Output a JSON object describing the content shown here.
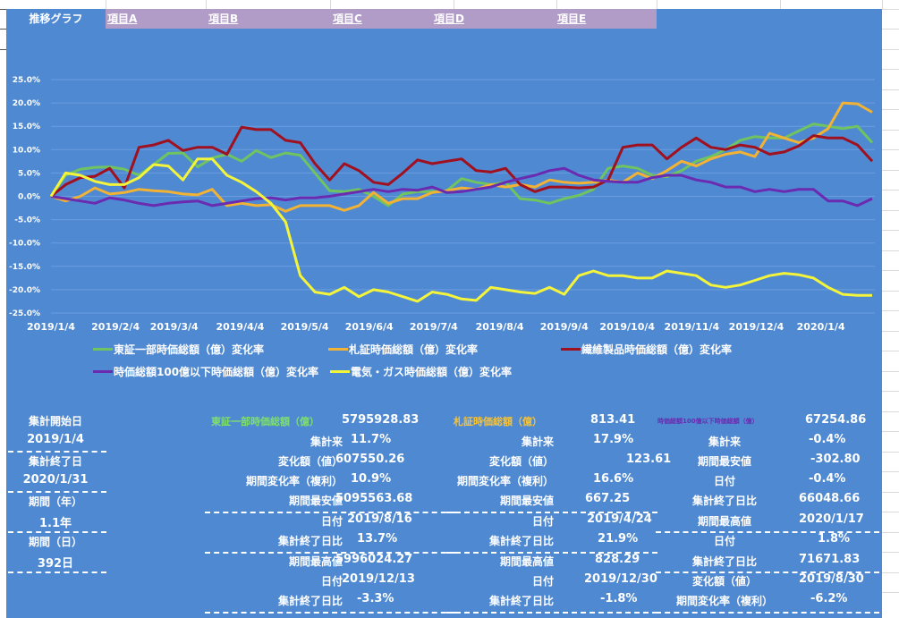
{
  "header": {
    "title": "推移グラフ",
    "tabs": [
      {
        "label": "項目A"
      },
      {
        "label": "項目B"
      },
      {
        "label": "項目C"
      },
      {
        "label": "項目D"
      },
      {
        "label": "項目E"
      }
    ]
  },
  "colors": {
    "panel_bg": "#4f89d2",
    "tab_band": "#b19cc8",
    "tosho": "#70c460",
    "sassho": "#f2b233",
    "seni": "#a0101e",
    "small_cap": "#6a2bb0",
    "denki_gas": "#f4f43a"
  },
  "chart_data": {
    "type": "line",
    "title": "",
    "xlabel": "",
    "ylabel": "",
    "ylim": [
      -0.25,
      0.25
    ],
    "y_ticks": [
      "25.0%",
      "20.0%",
      "15.0%",
      "10.0%",
      "5.0%",
      "0.0%",
      "-5.0%",
      "-10.0%",
      "-15.0%",
      "-20.0%",
      "-25.0%"
    ],
    "x_tick_labels": [
      "2019/1/4",
      "2019/2/4",
      "2019/3/4",
      "2019/4/4",
      "2019/5/4",
      "2019/6/4",
      "2019/7/4",
      "2019/8/4",
      "2019/9/4",
      "2019/10/4",
      "2019/11/4",
      "2019/12/4",
      "2020/1/4"
    ],
    "x_tick_weeks": [
      0,
      4.4,
      8.4,
      12.9,
      17.3,
      21.7,
      26.1,
      30.6,
      35,
      39.3,
      43.7,
      48.1,
      52.5
    ],
    "x_range_weeks": [
      0,
      56
    ],
    "grid": true,
    "legend_position": "bottom",
    "series": [
      {
        "name": "東証一部時価総額（億）変化率",
        "color_key": "tosho",
        "values": [
          0.0,
          4.5,
          5.8,
          6.2,
          6.3,
          5.8,
          4.5,
          6.8,
          9.2,
          9.3,
          6.3,
          8.2,
          9.0,
          7.5,
          9.8,
          8.3,
          9.3,
          8.8,
          5.0,
          1.2,
          1.0,
          1.5,
          0.0,
          -2.0,
          0.5,
          1.0,
          1.0,
          1.2,
          3.8,
          3.0,
          2.5,
          3.0,
          -0.5,
          -0.8,
          -1.5,
          -0.5,
          0.2,
          1.5,
          6.0,
          6.5,
          6.0,
          4.5,
          4.2,
          5.5,
          7.5,
          8.5,
          10.0,
          12.0,
          12.8,
          12.5,
          12.5,
          14.0,
          15.5,
          15.0,
          14.5,
          15.0,
          11.5
        ]
      },
      {
        "name": "札証時価総額（億）変化率",
        "color_key": "sassho",
        "values": [
          0.0,
          -1.0,
          0.0,
          1.8,
          0.5,
          0.8,
          1.5,
          1.2,
          1.0,
          0.5,
          0.3,
          1.5,
          -2.0,
          -1.5,
          -2.0,
          -1.8,
          -3.2,
          -2.0,
          -2.0,
          -2.0,
          -3.0,
          -2.0,
          0.8,
          -1.5,
          -0.5,
          -0.5,
          0.8,
          1.2,
          1.8,
          1.5,
          2.5,
          2.0,
          2.5,
          2.0,
          3.5,
          3.0,
          2.8,
          3.0,
          3.5,
          3.0,
          5.0,
          3.8,
          5.5,
          7.5,
          6.5,
          8.0,
          9.0,
          9.5,
          8.5,
          13.5,
          12.5,
          11.5,
          12.5,
          14.5,
          20.0,
          19.8,
          18.0
        ]
      },
      {
        "name": "繊維製品時価総額（億）変化率",
        "color_key": "seni",
        "values": [
          0.0,
          2.5,
          4.0,
          4.3,
          6.0,
          1.8,
          10.5,
          11.0,
          12.0,
          9.8,
          10.5,
          10.5,
          9.0,
          14.8,
          14.3,
          14.3,
          12.0,
          11.5,
          7.0,
          3.5,
          7.0,
          5.5,
          3.0,
          2.5,
          5.0,
          7.8,
          7.0,
          7.5,
          8.0,
          5.5,
          5.2,
          6.0,
          2.5,
          1.0,
          2.0,
          2.0,
          1.8,
          2.0,
          3.5,
          10.5,
          11.0,
          11.0,
          8.0,
          10.5,
          12.5,
          10.5,
          10.0,
          11.0,
          10.5,
          9.0,
          9.5,
          10.8,
          13.0,
          12.5,
          12.5,
          11.0,
          7.5
        ]
      },
      {
        "name": "時価総額100億以下時価総額（億）変化率",
        "color_key": "small_cap",
        "values": [
          0.0,
          -0.5,
          -1.0,
          -1.5,
          -0.3,
          -0.8,
          -1.5,
          -2.0,
          -1.5,
          -1.2,
          -1.0,
          -2.0,
          -1.5,
          -1.0,
          -0.5,
          -0.3,
          -0.8,
          -0.3,
          -0.3,
          0.0,
          0.5,
          1.0,
          1.5,
          1.0,
          1.5,
          1.3,
          2.0,
          0.8,
          1.0,
          1.5,
          2.0,
          3.0,
          3.8,
          4.5,
          5.5,
          6.0,
          4.5,
          3.5,
          3.2,
          3.0,
          3.0,
          4.0,
          4.5,
          4.5,
          3.5,
          3.0,
          2.0,
          2.0,
          1.0,
          1.5,
          1.0,
          1.5,
          1.5,
          -1.0,
          -1.0,
          -2.0,
          -0.5
        ]
      },
      {
        "name": "電気・ガス時価総額（億）変化率",
        "color_key": "denki_gas",
        "values": [
          0.0,
          5.0,
          4.5,
          3.2,
          2.5,
          2.5,
          4.0,
          6.8,
          6.5,
          3.5,
          8.0,
          8.0,
          4.5,
          3.0,
          1.0,
          -1.5,
          -5.5,
          -17.0,
          -20.5,
          -21.0,
          -19.5,
          -21.5,
          -20.0,
          -20.5,
          -21.5,
          -22.5,
          -20.5,
          -21.0,
          -22.0,
          -22.3,
          -19.5,
          -20.0,
          -20.5,
          -20.8,
          -19.5,
          -21.0,
          -17.0,
          -16.0,
          -17.0,
          -17.0,
          -17.5,
          -17.5,
          -16.0,
          -16.5,
          -17.0,
          -19.0,
          -19.5,
          -19.0,
          -18.0,
          -17.0,
          -16.5,
          -16.8,
          -17.5,
          -19.5,
          -21.0,
          -21.2,
          -21.2
        ]
      }
    ]
  },
  "summary": {
    "left": [
      {
        "label": "集計開始日",
        "value": "2019/1/4"
      },
      {
        "label": "集計終了日",
        "value": "2020/1/31"
      },
      {
        "label": "期間（年）",
        "value": "1.1年"
      },
      {
        "label": "期間（日）",
        "value": "392日"
      }
    ],
    "col1": {
      "title": "東証一部時価総額（億）",
      "title_value": "5795928.83",
      "rows": [
        {
          "label": "集計来",
          "value": "11.7%"
        },
        {
          "label": "変化額（値）",
          "value": "607550.26"
        },
        {
          "label": "期間変化率（複利）",
          "value": "10.9%"
        },
        {
          "label": "期間最安値",
          "value": "5095563.68"
        },
        {
          "label": "日付",
          "value": "2019/8/16"
        },
        {
          "label": "集計終了日比",
          "value": "13.7%"
        },
        {
          "label": "期間最高値",
          "value": "5996024.27"
        },
        {
          "label": "日付",
          "value": "2019/12/13"
        },
        {
          "label": "集計終了日比",
          "value": "-3.3%"
        }
      ]
    },
    "col2": {
      "title": "札証時価総額（億）",
      "title_value": "813.41",
      "rows": [
        {
          "label": "集計来",
          "value": "17.9%"
        },
        {
          "label": "変化額（値）",
          "value": "123.61"
        },
        {
          "label": "期間変化率（複利）",
          "value": "16.6%"
        },
        {
          "label": "期間最安値",
          "value": "667.25"
        },
        {
          "label": "日付",
          "value": "2019/4/24"
        },
        {
          "label": "集計終了日比",
          "value": "21.9%"
        },
        {
          "label": "期間最高値",
          "value": "828.29"
        },
        {
          "label": "日付",
          "value": "2019/12/30"
        },
        {
          "label": "集計終了日比",
          "value": "-1.8%"
        }
      ]
    },
    "col3": {
      "title": "時価総額100億以下時価総額（億）",
      "title_value": "67254.86",
      "rows": [
        {
          "label": "集計来",
          "value": "-0.4%"
        },
        {
          "label": "期間最安値",
          "value": "-302.80"
        },
        {
          "label": "日付",
          "value": "-0.4%"
        },
        {
          "label": "集計終了日比",
          "value": "66048.66"
        },
        {
          "label": "期間最高値",
          "value": "2020/1/17"
        },
        {
          "label": "日付",
          "value": "1.8%"
        },
        {
          "label": "集計終了日比",
          "value": "71671.83"
        },
        {
          "label": "変化額（値）",
          "value": "2019/8/30"
        },
        {
          "label": "期間変化率（複利）",
          "value": "-6.2%"
        }
      ]
    }
  }
}
